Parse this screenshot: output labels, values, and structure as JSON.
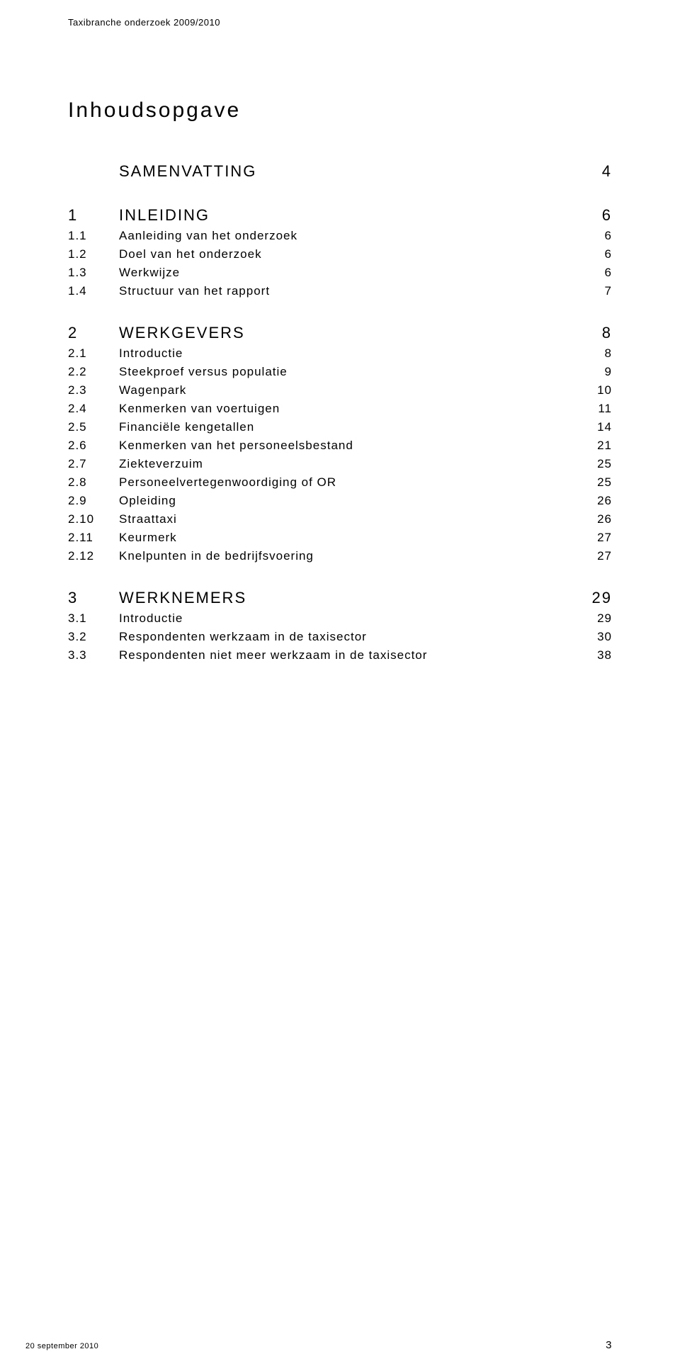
{
  "header": "Taxibranche onderzoek 2009/2010",
  "toc_title": "Inhoudsopgave",
  "footer_date": "20 september 2010",
  "footer_page": "3",
  "colors": {
    "text": "#000000",
    "background": "#ffffff"
  },
  "typography": {
    "font_family": "Verdana",
    "header_fontsize_pt": 9,
    "title_fontsize_pt": 22,
    "section_fontsize_pt": 16,
    "sub_fontsize_pt": 12,
    "footer_fontsize_pt": 8
  },
  "toc": [
    {
      "number": "",
      "title": "SAMENVATTING",
      "page": "4",
      "level": "section",
      "first": true
    },
    {
      "number": "1",
      "title": "INLEIDING",
      "page": "6",
      "level": "section"
    },
    {
      "number": "1.1",
      "title": "Aanleiding van het onderzoek",
      "page": "6",
      "level": "sub"
    },
    {
      "number": "1.2",
      "title": "Doel van het onderzoek",
      "page": "6",
      "level": "sub"
    },
    {
      "number": "1.3",
      "title": "Werkwijze",
      "page": "6",
      "level": "sub"
    },
    {
      "number": "1.4",
      "title": "Structuur van het rapport",
      "page": "7",
      "level": "sub"
    },
    {
      "number": "2",
      "title": "WERKGEVERS",
      "page": "8",
      "level": "section"
    },
    {
      "number": "2.1",
      "title": "Introductie",
      "page": "8",
      "level": "sub"
    },
    {
      "number": "2.2",
      "title": "Steekproef versus populatie",
      "page": "9",
      "level": "sub"
    },
    {
      "number": "2.3",
      "title": "Wagenpark",
      "page": "10",
      "level": "sub"
    },
    {
      "number": "2.4",
      "title": "Kenmerken van voertuigen",
      "page": "11",
      "level": "sub"
    },
    {
      "number": "2.5",
      "title": "Financiële kengetallen",
      "page": "14",
      "level": "sub"
    },
    {
      "number": "2.6",
      "title": "Kenmerken van het personeelsbestand",
      "page": "21",
      "level": "sub"
    },
    {
      "number": "2.7",
      "title": "Ziekteverzuim",
      "page": "25",
      "level": "sub"
    },
    {
      "number": "2.8",
      "title": "Personeelvertegenwoordiging of OR",
      "page": "25",
      "level": "sub"
    },
    {
      "number": "2.9",
      "title": "Opleiding",
      "page": "26",
      "level": "sub"
    },
    {
      "number": "2.10",
      "title": "Straattaxi",
      "page": "26",
      "level": "sub"
    },
    {
      "number": "2.11",
      "title": "Keurmerk",
      "page": "27",
      "level": "sub"
    },
    {
      "number": "2.12",
      "title": "Knelpunten in de bedrijfsvoering",
      "page": "27",
      "level": "sub"
    },
    {
      "number": "3",
      "title": "WERKNEMERS",
      "page": "29",
      "level": "section"
    },
    {
      "number": "3.1",
      "title": "Introductie",
      "page": "29",
      "level": "sub"
    },
    {
      "number": "3.2",
      "title": "Respondenten werkzaam in de taxisector",
      "page": "30",
      "level": "sub"
    },
    {
      "number": "3.3",
      "title": "Respondenten niet meer werkzaam in de taxisector",
      "page": "38",
      "level": "sub"
    }
  ]
}
